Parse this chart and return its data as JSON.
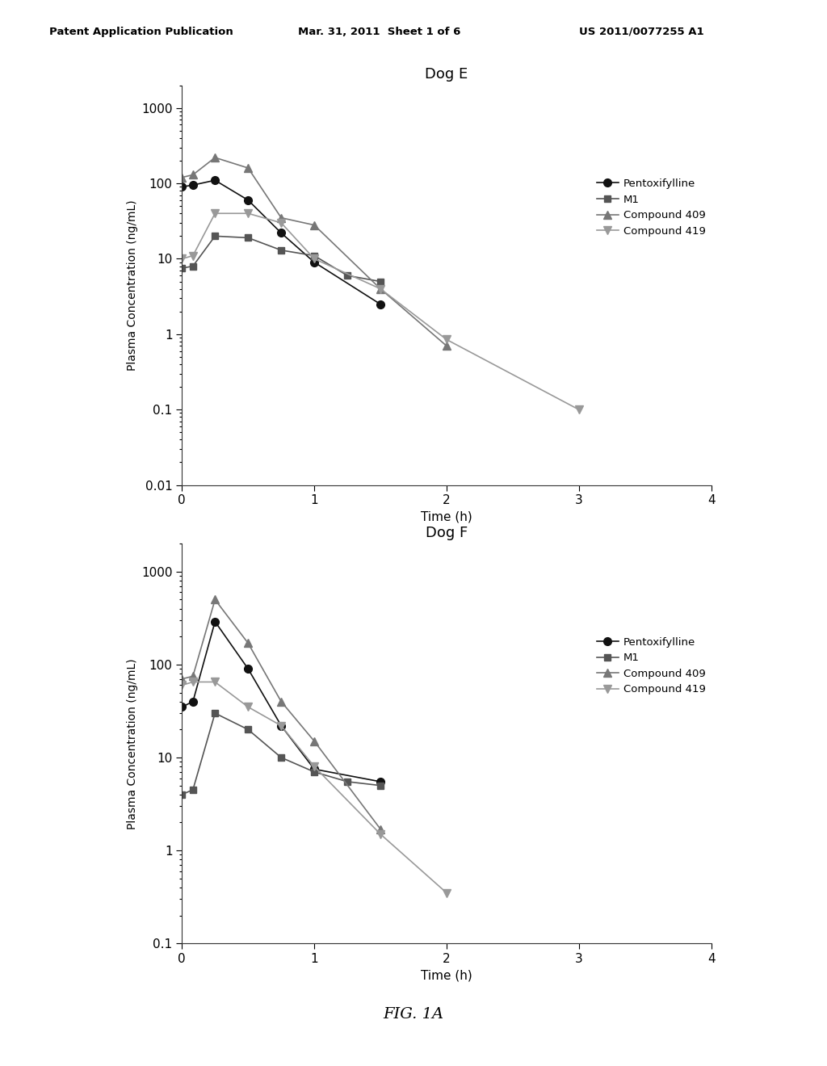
{
  "dog_e": {
    "title": "Dog E",
    "pentoxifylline": {
      "x": [
        0.0,
        0.083,
        0.25,
        0.5,
        0.75,
        1.0,
        1.5
      ],
      "y": [
        90,
        95,
        110,
        60,
        22,
        9,
        2.5
      ],
      "label": "Pentoxifylline",
      "color": "#111111",
      "marker": "o",
      "markersize": 7,
      "linewidth": 1.2
    },
    "m1": {
      "x": [
        0.0,
        0.083,
        0.25,
        0.5,
        0.75,
        1.0,
        1.25,
        1.5
      ],
      "y": [
        7.5,
        8,
        20,
        19,
        13,
        11,
        6,
        5
      ],
      "label": "M1",
      "color": "#555555",
      "marker": "s",
      "markersize": 6,
      "linewidth": 1.2
    },
    "compound409": {
      "x": [
        0.0,
        0.083,
        0.25,
        0.5,
        0.75,
        1.0,
        1.5,
        2.0
      ],
      "y": [
        120,
        130,
        220,
        160,
        35,
        28,
        4,
        0.7
      ],
      "label": "Compound 409",
      "color": "#777777",
      "marker": "^",
      "markersize": 7,
      "linewidth": 1.2
    },
    "compound419": {
      "x": [
        0.0,
        0.083,
        0.25,
        0.5,
        0.75,
        1.0,
        1.5,
        2.0,
        3.0
      ],
      "y": [
        10,
        11,
        40,
        40,
        30,
        10,
        4,
        0.85,
        0.1
      ],
      "label": "Compound 419",
      "color": "#999999",
      "marker": "v",
      "markersize": 7,
      "linewidth": 1.2
    },
    "ylim": [
      0.01,
      2000
    ],
    "xlim": [
      0,
      4
    ],
    "yticks": [
      0.01,
      0.1,
      1,
      10,
      100,
      1000
    ],
    "xticks": [
      0,
      1,
      2,
      3,
      4
    ]
  },
  "dog_f": {
    "title": "Dog F",
    "pentoxifylline": {
      "x": [
        0.0,
        0.083,
        0.25,
        0.5,
        0.75,
        1.0,
        1.5
      ],
      "y": [
        35,
        40,
        290,
        90,
        22,
        7.5,
        5.5
      ],
      "label": "Pentoxifylline",
      "color": "#111111",
      "marker": "o",
      "markersize": 7,
      "linewidth": 1.2
    },
    "m1": {
      "x": [
        0.0,
        0.083,
        0.25,
        0.5,
        0.75,
        1.0,
        1.25,
        1.5
      ],
      "y": [
        4,
        4.5,
        30,
        20,
        10,
        7,
        5.5,
        5
      ],
      "label": "M1",
      "color": "#555555",
      "marker": "s",
      "markersize": 6,
      "linewidth": 1.2
    },
    "compound409": {
      "x": [
        0.0,
        0.083,
        0.25,
        0.5,
        0.75,
        1.0,
        1.5
      ],
      "y": [
        70,
        75,
        500,
        170,
        40,
        15,
        1.7
      ],
      "label": "Compound 409",
      "color": "#777777",
      "marker": "^",
      "markersize": 7,
      "linewidth": 1.2
    },
    "compound419": {
      "x": [
        0.0,
        0.083,
        0.25,
        0.5,
        0.75,
        1.0,
        1.5,
        2.0
      ],
      "y": [
        60,
        65,
        65,
        35,
        22,
        8,
        1.5,
        0.35
      ],
      "label": "Compound 419",
      "color": "#999999",
      "marker": "v",
      "markersize": 7,
      "linewidth": 1.2
    },
    "ylim": [
      0.1,
      2000
    ],
    "xlim": [
      0,
      4
    ],
    "yticks": [
      0.1,
      1,
      10,
      100,
      1000
    ],
    "xticks": [
      0,
      1,
      2,
      3,
      4
    ]
  },
  "header_left": "Patent Application Publication",
  "header_mid": "Mar. 31, 2011  Sheet 1 of 6",
  "header_right": "US 2011/0077255 A1",
  "figure_label": "FIG. 1A",
  "ylabel": "Plasma Concentration (ng/mL)",
  "xlabel": "Time (h)",
  "bg_color": "#ffffff",
  "legend_order": [
    "pentoxifylline",
    "m1",
    "compound409",
    "compound419"
  ]
}
